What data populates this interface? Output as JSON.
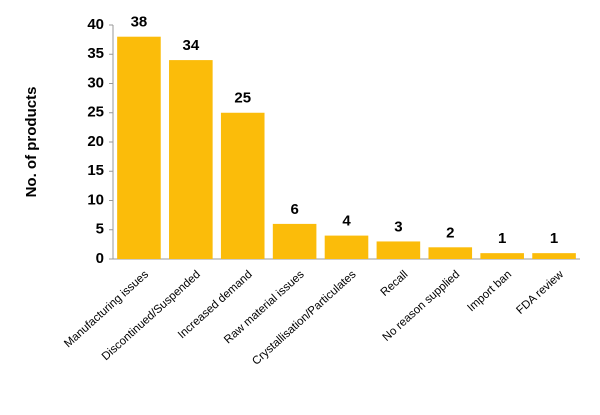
{
  "chart_data": {
    "type": "bar",
    "y_axis_label": "No. of products",
    "categories": [
      "Manufacturing issues",
      "Discontinued/Suspended",
      "Increased demand",
      "Raw material issues",
      "Crystallisation/Particulates",
      "Recall",
      "No reason supplied",
      "Import ban",
      "FDA review"
    ],
    "values": [
      38,
      34,
      25,
      6,
      4,
      3,
      2,
      1,
      1
    ],
    "color": "#fbbc0a",
    "ylim": [
      0,
      40
    ],
    "yticks": [
      0,
      5,
      10,
      15,
      20,
      25,
      30,
      35,
      40
    ],
    "grid": false,
    "value_labels_shown": true
  }
}
